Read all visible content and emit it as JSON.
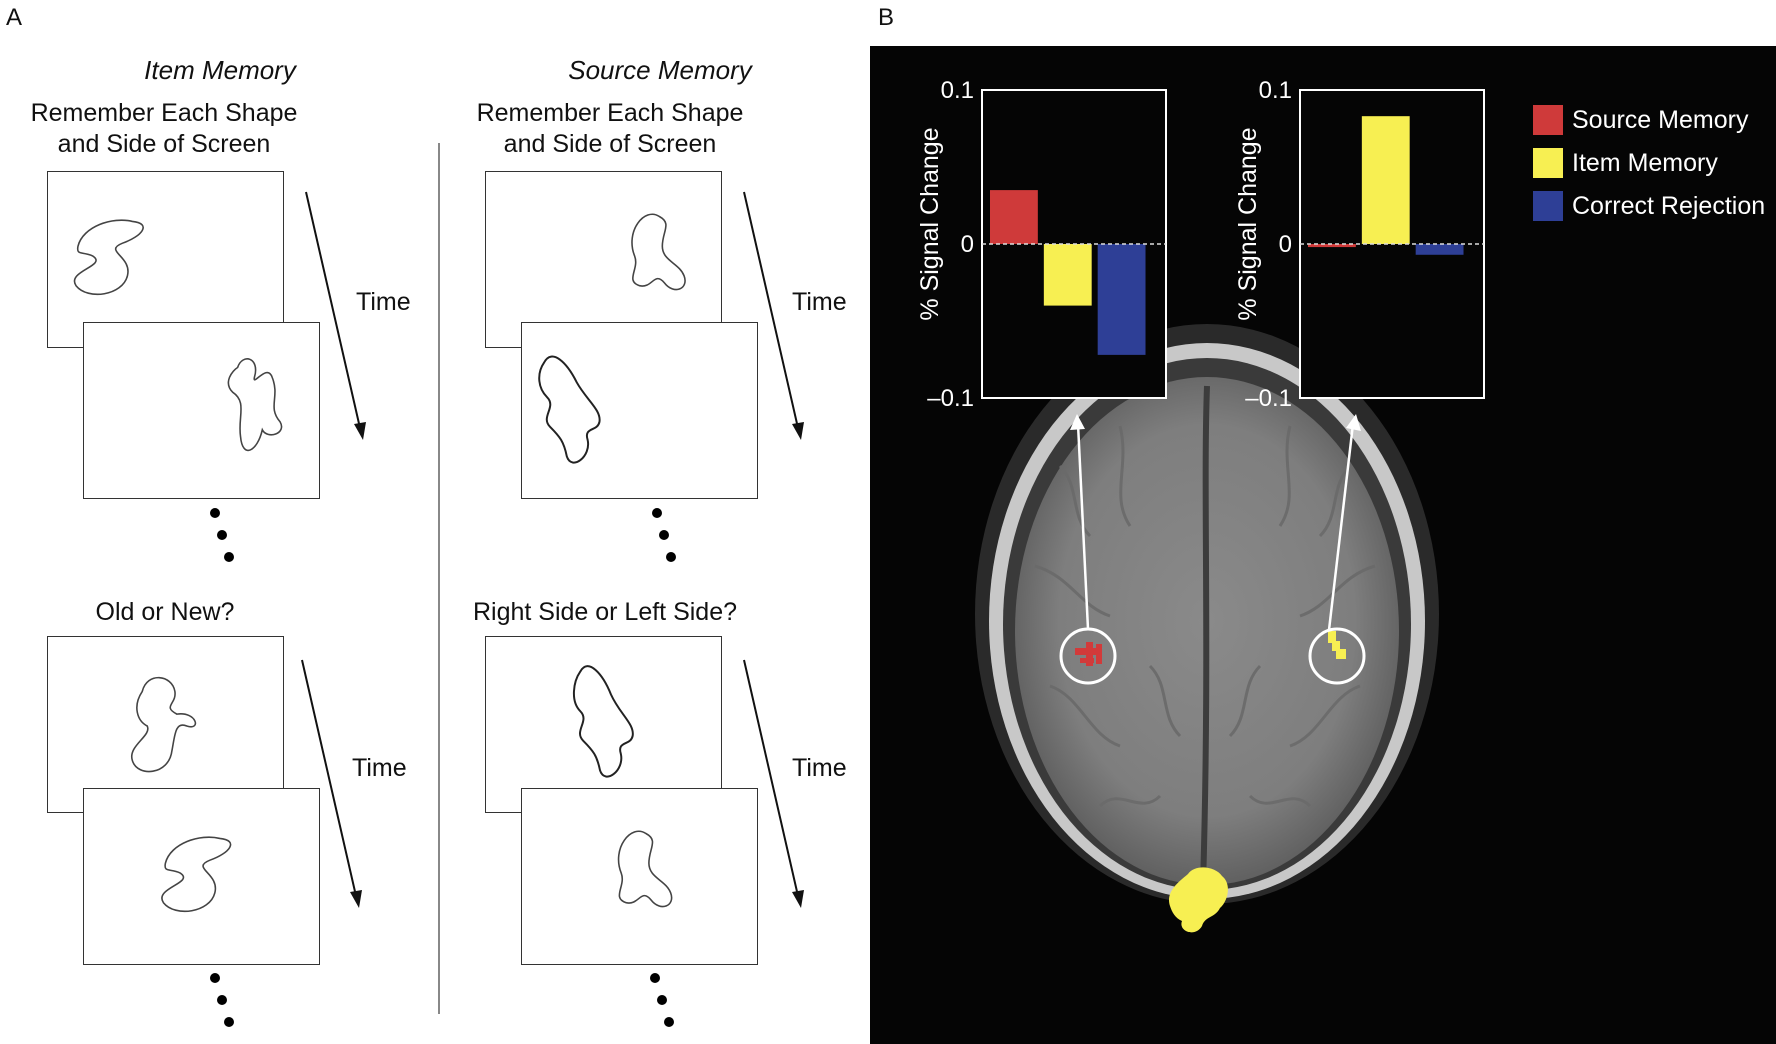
{
  "panel_a": {
    "letter": "A",
    "item_column": {
      "heading": "Item Memory",
      "study_instruction_line1": "Remember Each Shape",
      "study_instruction_line2": "and Side of Screen",
      "test_question": "Old or New?",
      "time_label_study": "Time",
      "time_label_test": "Time"
    },
    "source_column": {
      "heading": "Source Memory",
      "study_instruction_line1": "Remember Each Shape",
      "study_instruction_line2": "and Side of Screen",
      "test_question": "Right Side or Left Side?",
      "time_label_study": "Time",
      "time_label_test": "Time"
    }
  },
  "panel_b": {
    "letter": "B",
    "legend": [
      {
        "label": "Source Memory",
        "color": "#cf3a3a"
      },
      {
        "label": "Item Memory",
        "color": "#f7ef52"
      },
      {
        "label": "Correct Rejection",
        "color": "#2e3f96"
      }
    ],
    "brain_cluster_color": "#f7ef52",
    "brain_cluster_left_color": "#d23a3a"
  },
  "chart_data": [
    {
      "type": "bar",
      "categories": [
        "Source Memory",
        "Item Memory",
        "Correct Rejection"
      ],
      "values": [
        0.035,
        -0.04,
        -0.072
      ],
      "colors": [
        "#cf3a3a",
        "#f7ef52",
        "#2e3f96"
      ],
      "ylabel": "% Signal Change",
      "ylim": [
        -0.1,
        0.1
      ],
      "yticks": [
        "0.1",
        "0",
        "–0.1"
      ],
      "zero_line": "dashed",
      "grid": false
    },
    {
      "type": "bar",
      "categories": [
        "Source Memory",
        "Item Memory",
        "Correct Rejection"
      ],
      "values": [
        -0.002,
        0.083,
        -0.007
      ],
      "colors": [
        "#cf3a3a",
        "#f7ef52",
        "#2e3f96"
      ],
      "ylabel": "% Signal Change",
      "ylim": [
        -0.1,
        0.1
      ],
      "yticks": [
        "0.1",
        "0",
        "–0.1"
      ],
      "zero_line": "dashed",
      "grid": false
    }
  ]
}
